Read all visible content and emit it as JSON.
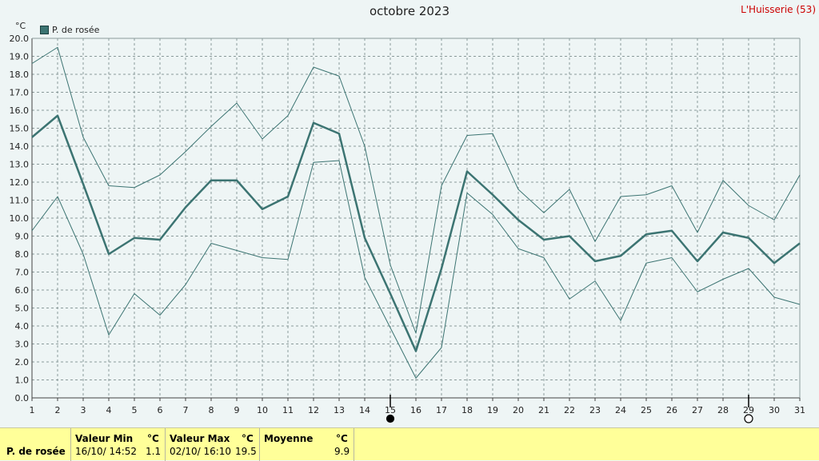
{
  "header": {
    "title": "octobre 2023",
    "station": "L'Huisserie (53)",
    "unit": "°C",
    "legend": "P. de rosée"
  },
  "footer": {
    "series_label": "P. de rosée",
    "min_label": "Valeur Min",
    "min_unit": "°C",
    "min_datetime": "16/10/  14:52",
    "min_value": "1.1",
    "max_label": "Valeur Max",
    "max_unit": "°C",
    "max_datetime": "02/10/  16:10",
    "max_value": "19.5",
    "avg_label": "Moyenne",
    "avg_unit": "°C",
    "avg_value": "9.9"
  },
  "colors": {
    "series": "#3c7472",
    "grid": "#8a9a9a",
    "station": "#cc0000",
    "footer_bg": "#ffff99"
  },
  "chart_data": {
    "type": "line",
    "title": "octobre 2023",
    "ylabel": "°C",
    "ylim": [
      0,
      20
    ],
    "yticks": [
      "0.0",
      "1.0",
      "2.0",
      "3.0",
      "4.0",
      "5.0",
      "6.0",
      "7.0",
      "8.0",
      "9.0",
      "10.0",
      "11.0",
      "12.0",
      "13.0",
      "14.0",
      "15.0",
      "16.0",
      "17.0",
      "18.0",
      "19.0",
      "20.0"
    ],
    "x": [
      1,
      2,
      3,
      4,
      5,
      6,
      7,
      8,
      9,
      10,
      11,
      12,
      13,
      14,
      15,
      16,
      17,
      18,
      19,
      20,
      21,
      22,
      23,
      24,
      25,
      26,
      27,
      28,
      29,
      30,
      31
    ],
    "grid": true,
    "legend_position": "top-left",
    "series": [
      {
        "name": "P. de rosée",
        "role": "mean",
        "values": [
          14.5,
          15.7,
          11.9,
          8.0,
          8.9,
          8.8,
          10.6,
          12.1,
          12.1,
          10.5,
          11.2,
          15.3,
          14.7,
          8.9,
          5.8,
          2.6,
          7.2,
          12.6,
          11.3,
          9.9,
          8.8,
          9.0,
          7.6,
          7.9,
          9.1,
          9.3,
          7.6,
          9.2,
          8.9,
          7.5,
          8.6
        ]
      },
      {
        "role": "max",
        "values": [
          18.6,
          19.5,
          14.5,
          11.8,
          11.7,
          12.4,
          13.7,
          15.1,
          16.4,
          14.4,
          15.7,
          18.4,
          17.9,
          14.0,
          7.4,
          3.6,
          11.8,
          14.6,
          14.7,
          11.6,
          10.3,
          11.6,
          8.7,
          11.2,
          11.3,
          11.8,
          9.2,
          12.1,
          10.7,
          9.9,
          12.4
        ]
      },
      {
        "role": "min",
        "values": [
          9.3,
          11.2,
          8.0,
          3.5,
          5.8,
          4.6,
          6.3,
          8.6,
          8.2,
          7.8,
          7.7,
          13.1,
          13.2,
          6.7,
          3.9,
          1.1,
          2.8,
          11.4,
          10.2,
          8.3,
          7.8,
          5.5,
          6.5,
          4.3,
          7.5,
          7.8,
          5.9,
          6.6,
          7.2,
          5.6,
          5.2
        ]
      }
    ],
    "markers": [
      {
        "x": 15,
        "symbol": "new-moon-icon"
      },
      {
        "x": 29,
        "symbol": "full-moon-icon"
      }
    ]
  }
}
